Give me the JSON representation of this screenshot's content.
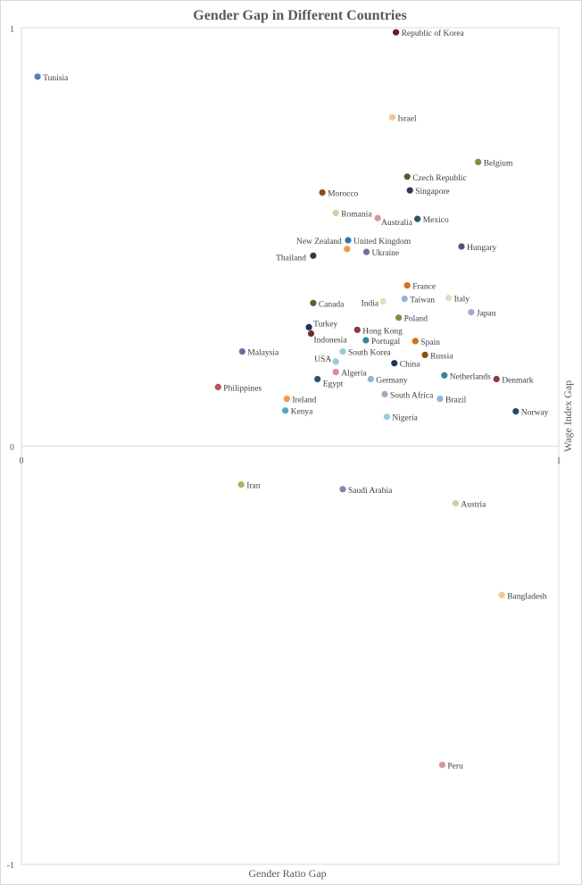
{
  "chart_data": {
    "type": "scatter",
    "title": "Gender Gap in Different Countries",
    "xlabel": "Gender Ratio Gap",
    "ylabel": "Wage Index Gap",
    "xlim": [
      0,
      1
    ],
    "ylim": [
      -1,
      1
    ],
    "x_ticks": [
      "0",
      "1"
    ],
    "y_ticks": [
      "1",
      "0",
      "-1"
    ],
    "grid": false,
    "legend": "none",
    "points": [
      {
        "label": "Republic of Korea",
        "x": 0.697,
        "y": 0.989,
        "color": "#6b1e1e"
      },
      {
        "label": "Tunisia",
        "x": 0.03,
        "y": 0.883,
        "color": "#4f81bd"
      },
      {
        "label": "Israel",
        "x": 0.69,
        "y": 0.786,
        "color": "#fac090"
      },
      {
        "label": "Belgium",
        "x": 0.85,
        "y": 0.679,
        "color": "#77933c"
      },
      {
        "label": "Czech Republic",
        "x": 0.718,
        "y": 0.644,
        "color": "#4f6228"
      },
      {
        "label": "Singapore",
        "x": 0.723,
        "y": 0.611,
        "color": "#403151"
      },
      {
        "label": "Morocco",
        "x": 0.56,
        "y": 0.606,
        "color": "#984807"
      },
      {
        "label": "Romania",
        "x": 0.585,
        "y": 0.557,
        "color": "#c3d69b"
      },
      {
        "label": "Australia",
        "x": 0.663,
        "y": 0.545,
        "color": "#d99694"
      },
      {
        "label": "Mexico",
        "x": 0.737,
        "y": 0.543,
        "color": "#215968"
      },
      {
        "label": "United Kingdom",
        "x": 0.608,
        "y": 0.492,
        "color": "#2e75b6"
      },
      {
        "label": "New Zealand",
        "x": 0.606,
        "y": 0.471,
        "color": "#f79646"
      },
      {
        "label": "Hungary",
        "x": 0.819,
        "y": 0.477,
        "color": "#604a7b"
      },
      {
        "label": "Ukraine",
        "x": 0.642,
        "y": 0.464,
        "color": "#8064a2"
      },
      {
        "label": "Thailand",
        "x": 0.543,
        "y": 0.455,
        "color": "#403151"
      },
      {
        "label": "France",
        "x": 0.718,
        "y": 0.384,
        "color": "#e46c0a"
      },
      {
        "label": "Taiwan",
        "x": 0.713,
        "y": 0.352,
        "color": "#95b3d7"
      },
      {
        "label": "India",
        "x": 0.673,
        "y": 0.346,
        "color": "#d7e4bd"
      },
      {
        "label": "Italy",
        "x": 0.795,
        "y": 0.354,
        "color": "#d7e4bd"
      },
      {
        "label": "Canada",
        "x": 0.543,
        "y": 0.342,
        "color": "#4f6228"
      },
      {
        "label": "Japan",
        "x": 0.837,
        "y": 0.32,
        "color": "#b3a2c7"
      },
      {
        "label": "Poland",
        "x": 0.702,
        "y": 0.307,
        "color": "#77933c"
      },
      {
        "label": "Turkey",
        "x": 0.535,
        "y": 0.284,
        "color": "#17375e"
      },
      {
        "label": "Hong Kong",
        "x": 0.625,
        "y": 0.278,
        "color": "#953735"
      },
      {
        "label": "Indonesia",
        "x": 0.539,
        "y": 0.269,
        "color": "#772c2a"
      },
      {
        "label": "Portugal",
        "x": 0.641,
        "y": 0.253,
        "color": "#31859c"
      },
      {
        "label": "Spain",
        "x": 0.733,
        "y": 0.251,
        "color": "#e46c0a"
      },
      {
        "label": "Malaysia",
        "x": 0.411,
        "y": 0.226,
        "color": "#8064a2"
      },
      {
        "label": "South Korea",
        "x": 0.598,
        "y": 0.226,
        "color": "#93cddd"
      },
      {
        "label": "Russia",
        "x": 0.751,
        "y": 0.218,
        "color": "#984807"
      },
      {
        "label": "USA",
        "x": 0.585,
        "y": 0.202,
        "color": "#93cddd"
      },
      {
        "label": "China",
        "x": 0.694,
        "y": 0.198,
        "color": "#17375e"
      },
      {
        "label": "Algeria",
        "x": 0.585,
        "y": 0.177,
        "color": "#e6868a"
      },
      {
        "label": "Netherlands",
        "x": 0.787,
        "y": 0.169,
        "color": "#31859c"
      },
      {
        "label": "Denmark",
        "x": 0.884,
        "y": 0.16,
        "color": "#953735"
      },
      {
        "label": "Egypt",
        "x": 0.551,
        "y": 0.16,
        "color": "#215968"
      },
      {
        "label": "Germany",
        "x": 0.65,
        "y": 0.16,
        "color": "#95b3d7"
      },
      {
        "label": "Philippines",
        "x": 0.366,
        "y": 0.141,
        "color": "#c0504d"
      },
      {
        "label": "South Africa",
        "x": 0.676,
        "y": 0.124,
        "color": "#b3a2c7"
      },
      {
        "label": "Ireland",
        "x": 0.494,
        "y": 0.113,
        "color": "#f79646"
      },
      {
        "label": "Brazil",
        "x": 0.779,
        "y": 0.113,
        "color": "#8eb4e3"
      },
      {
        "label": "Kenya",
        "x": 0.491,
        "y": 0.085,
        "color": "#4bacc6"
      },
      {
        "label": "Norway",
        "x": 0.92,
        "y": 0.083,
        "color": "#1f497d"
      },
      {
        "label": "Nigeria",
        "x": 0.68,
        "y": 0.07,
        "color": "#93cddd"
      },
      {
        "label": "Iran",
        "x": 0.409,
        "y": -0.092,
        "color": "#9bbb59"
      },
      {
        "label": "Saudi Arabia",
        "x": 0.598,
        "y": -0.103,
        "color": "#8e7cc3"
      },
      {
        "label": "Austria",
        "x": 0.808,
        "y": -0.137,
        "color": "#c3d69b"
      },
      {
        "label": "Bangladesh",
        "x": 0.894,
        "y": -0.356,
        "color": "#fac090"
      },
      {
        "label": "Peru",
        "x": 0.783,
        "y": -0.762,
        "color": "#d99694"
      }
    ]
  }
}
